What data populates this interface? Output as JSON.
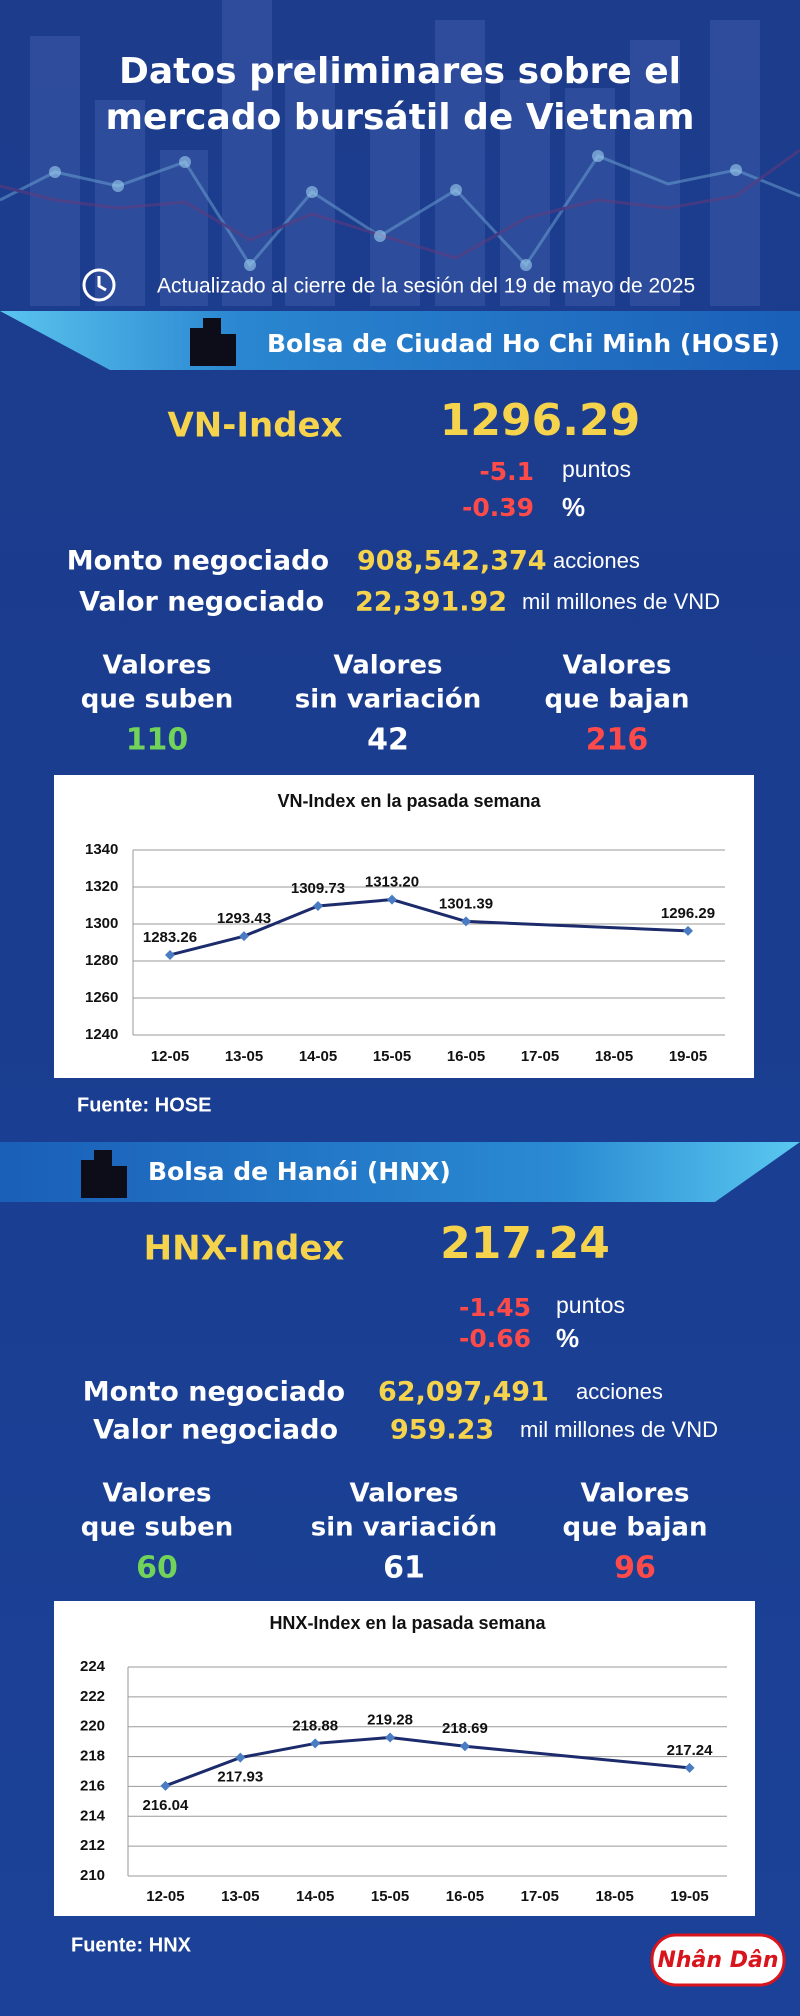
{
  "header": {
    "title": [
      "Datos preliminares sobre el",
      "mercado bursátil de Vietnam"
    ],
    "updated": "Actualizado al cierre de la sesión del 19 de mayo de 2025"
  },
  "exchanges": [
    {
      "name": "Bolsa de Ciudad Ho Chi Minh (HOSE)",
      "index_name": "VN-Index",
      "index_value": "1296.29",
      "change_points": "-5.1",
      "points_unit": "puntos",
      "change_pct": "-0.39",
      "pct_unit": "%",
      "volume_label": "Monto negociado",
      "volume": "908,542,374",
      "volume_unit": "acciones",
      "value_label": "Valor negociado",
      "value": "22,391.92",
      "value_unit": "mil millones de VND",
      "advancing_label": [
        "Valores",
        "que suben"
      ],
      "advancing": "110",
      "unchanged_label": [
        "Valores",
        "sin variación"
      ],
      "unchanged": "42",
      "declining_label": [
        "Valores",
        "que bajan"
      ],
      "declining": "216",
      "source": "Fuente: HOSE"
    },
    {
      "name": "Bolsa de Hanói (HNX)",
      "index_name": "HNX-Index",
      "index_value": "217.24",
      "change_points": "-1.45",
      "points_unit": "puntos",
      "change_pct": "-0.66",
      "pct_unit": "%",
      "volume_label": "Monto negociado",
      "volume": "62,097,491",
      "volume_unit": "acciones",
      "value_label": "Valor negociado",
      "value": "959.23",
      "value_unit": "mil millones de VND",
      "advancing_label": [
        "Valores",
        "que suben"
      ],
      "advancing": "60",
      "unchanged_label": [
        "Valores",
        "sin variación"
      ],
      "unchanged": "61",
      "declining_label": [
        "Valores",
        "que bajan"
      ],
      "declining": "96",
      "source": "Fuente:  HNX"
    }
  ],
  "chart_data": [
    {
      "type": "line",
      "title": "VN-Index en la pasada semana",
      "categories": [
        "12-05",
        "13-05",
        "14-05",
        "15-05",
        "16-05",
        "17-05",
        "18-05",
        "19-05"
      ],
      "series": [
        {
          "color": "#1c2b6b",
          "marker_color": "#4a7cc4",
          "x": [
            "12-05",
            "13-05",
            "14-05",
            "15-05",
            "16-05",
            "19-05"
          ],
          "values": [
            1283.26,
            1293.43,
            1309.73,
            1313.2,
            1301.39,
            1296.29
          ],
          "value_labels": [
            "1283.26",
            "1293.43",
            "1309.73",
            "1313.20",
            "1301.39",
            "1296.29"
          ]
        }
      ],
      "ylim": [
        1240,
        1340
      ],
      "yticks": [
        1240,
        1260,
        1280,
        1300,
        1320,
        1340
      ],
      "grid": true
    },
    {
      "type": "line",
      "title": "HNX-Index en la pasada semana",
      "categories": [
        "12-05",
        "13-05",
        "14-05",
        "15-05",
        "16-05",
        "17-05",
        "18-05",
        "19-05"
      ],
      "series": [
        {
          "color": "#1c2b6b",
          "marker_color": "#4a7cc4",
          "x": [
            "12-05",
            "13-05",
            "14-05",
            "15-05",
            "16-05",
            "19-05"
          ],
          "values": [
            216.04,
            217.93,
            218.88,
            219.28,
            218.69,
            217.24
          ]
        }
      ],
      "ylim": [
        210,
        224
      ],
      "yticks": [
        210,
        212,
        214,
        216,
        218,
        220,
        222,
        224
      ],
      "grid": true
    }
  ],
  "footer": {
    "logo": "Nhân Dân"
  }
}
